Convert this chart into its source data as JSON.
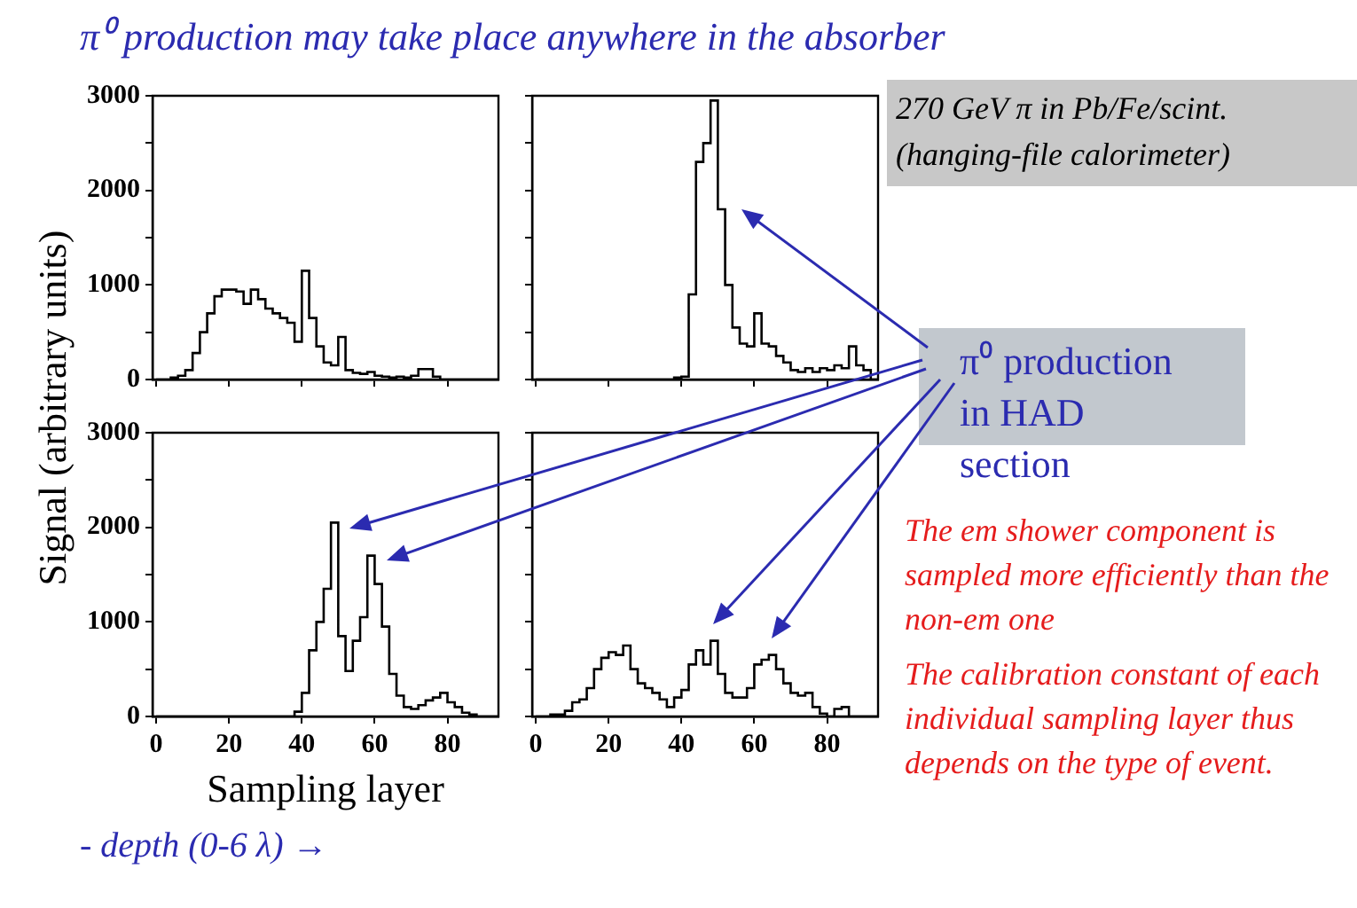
{
  "chart_data": [
    {
      "type": "histogram",
      "color": "#000000",
      "ylabel": "Signal (arbitrary units)",
      "tick_labels": "y",
      "xlim": [
        -1,
        94
      ],
      "ylim": [
        0,
        3000
      ],
      "xticks": [
        0,
        20,
        40,
        60,
        80
      ],
      "yticks": [
        0,
        {
          "value": 500,
          "label": null
        },
        1000,
        {
          "value": 1500,
          "label": null
        },
        2000,
        {
          "value": 2500,
          "label": null
        },
        3000
      ],
      "bins": [
        0,
        2,
        4,
        6,
        8,
        10,
        12,
        14,
        16,
        18,
        20,
        22,
        24,
        26,
        28,
        30,
        32,
        34,
        36,
        38,
        40,
        42,
        44,
        46,
        48,
        50,
        52,
        54,
        56,
        58,
        60,
        62,
        64,
        66,
        68,
        70,
        72,
        74,
        76,
        78,
        80,
        82,
        84,
        86,
        88,
        90,
        92,
        94
      ],
      "values": [
        0,
        0,
        20,
        40,
        100,
        280,
        500,
        700,
        880,
        950,
        950,
        930,
        800,
        950,
        850,
        750,
        700,
        650,
        600,
        400,
        1150,
        650,
        350,
        180,
        150,
        450,
        100,
        70,
        60,
        80,
        40,
        30,
        20,
        30,
        20,
        40,
        110,
        110,
        30,
        0,
        0,
        0,
        0,
        0,
        0,
        0,
        0
      ]
    },
    {
      "type": "histogram",
      "color": "#000000",
      "tick_labels": false,
      "xlim": [
        -1,
        94
      ],
      "ylim": [
        0,
        3000
      ],
      "xticks": [
        0,
        20,
        40,
        60,
        80
      ],
      "yticks": [
        0,
        {
          "value": 500,
          "label": null
        },
        1000,
        {
          "value": 1500,
          "label": null
        },
        2000,
        {
          "value": 2500,
          "label": null
        },
        3000
      ],
      "bins": [
        0,
        2,
        4,
        6,
        8,
        10,
        12,
        14,
        16,
        18,
        20,
        22,
        24,
        26,
        28,
        30,
        32,
        34,
        36,
        38,
        40,
        42,
        44,
        46,
        48,
        50,
        52,
        54,
        56,
        58,
        60,
        62,
        64,
        66,
        68,
        70,
        72,
        74,
        76,
        78,
        80,
        82,
        84,
        86,
        88,
        90,
        92,
        94
      ],
      "values": [
        0,
        0,
        0,
        0,
        0,
        0,
        0,
        0,
        0,
        0,
        0,
        0,
        0,
        0,
        0,
        0,
        0,
        0,
        0,
        20,
        30,
        900,
        2300,
        2500,
        2950,
        1800,
        1000,
        550,
        380,
        350,
        700,
        380,
        350,
        250,
        180,
        100,
        80,
        120,
        80,
        120,
        100,
        150,
        120,
        350,
        150,
        100,
        0
      ]
    },
    {
      "type": "histogram",
      "color": "#000000",
      "xlabel": "Sampling layer",
      "xlim": [
        -1,
        94
      ],
      "ylim": [
        0,
        3000
      ],
      "xticks": [
        0,
        20,
        40,
        60,
        80
      ],
      "yticks": [
        0,
        {
          "value": 500,
          "label": null
        },
        1000,
        {
          "value": 1500,
          "label": null
        },
        2000,
        {
          "value": 2500,
          "label": null
        },
        3000
      ],
      "bins": [
        0,
        2,
        4,
        6,
        8,
        10,
        12,
        14,
        16,
        18,
        20,
        22,
        24,
        26,
        28,
        30,
        32,
        34,
        36,
        38,
        40,
        42,
        44,
        46,
        48,
        50,
        52,
        54,
        56,
        58,
        60,
        62,
        64,
        66,
        68,
        70,
        72,
        74,
        76,
        78,
        80,
        82,
        84,
        86,
        88,
        90,
        92,
        94
      ],
      "values": [
        0,
        0,
        0,
        0,
        0,
        0,
        0,
        0,
        0,
        0,
        0,
        0,
        0,
        0,
        0,
        0,
        0,
        0,
        0,
        50,
        250,
        700,
        1000,
        1350,
        2050,
        850,
        480,
        800,
        1050,
        1700,
        1400,
        950,
        450,
        220,
        100,
        80,
        120,
        170,
        200,
        250,
        150,
        100,
        40,
        20,
        0,
        0,
        0
      ]
    },
    {
      "type": "histogram",
      "color": "#000000",
      "tick_labels": "x",
      "xlim": [
        -1,
        94
      ],
      "ylim": [
        0,
        3000
      ],
      "xticks": [
        0,
        20,
        40,
        60,
        80
      ],
      "yticks": [
        0,
        {
          "value": 500,
          "label": null
        },
        1000,
        {
          "value": 1500,
          "label": null
        },
        2000,
        {
          "value": 2500,
          "label": null
        },
        3000
      ],
      "bins": [
        0,
        2,
        4,
        6,
        8,
        10,
        12,
        14,
        16,
        18,
        20,
        22,
        24,
        26,
        28,
        30,
        32,
        34,
        36,
        38,
        40,
        42,
        44,
        46,
        48,
        50,
        52,
        54,
        56,
        58,
        60,
        62,
        64,
        66,
        68,
        70,
        72,
        74,
        76,
        78,
        80,
        82,
        84,
        86,
        88,
        90,
        92,
        94
      ],
      "values": [
        0,
        0,
        20,
        20,
        60,
        150,
        180,
        300,
        500,
        620,
        680,
        650,
        750,
        500,
        350,
        300,
        250,
        180,
        100,
        200,
        280,
        550,
        700,
        550,
        800,
        450,
        250,
        200,
        200,
        300,
        550,
        600,
        650,
        500,
        350,
        250,
        220,
        250,
        100,
        30,
        0,
        80,
        100,
        0,
        0,
        0,
        0
      ]
    },
    {
      "type": "other",
      "title": "π⁰ production may take place anywhere in the absorber",
      "annotations": [
        "270 GeV π in Pb/Fe/scint. (hanging-file calorimeter)",
        "π⁰ production in HAD section",
        "The em shower component is sampled more efficiently than the non-em one",
        "The calibration constant of each individual sampling layer thus depends on the type of event.",
        "- depth (0-6 λ) →"
      ]
    }
  ]
}
